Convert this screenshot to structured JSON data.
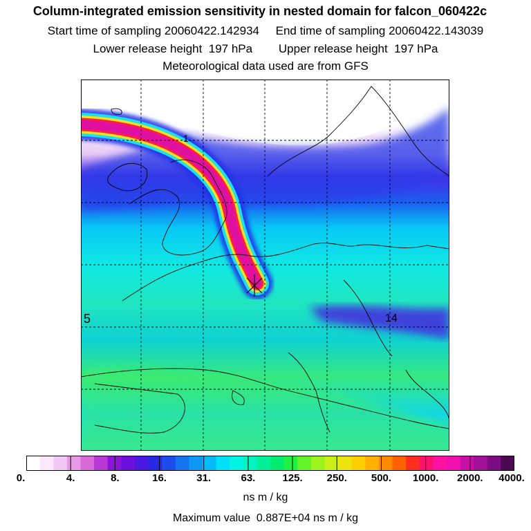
{
  "header": {
    "title": "Column-integrated emission sensitivity in nested domain for falcon_060422c",
    "sampling": "Start time of sampling 20060422.142934     End time of sampling 20060422.143039",
    "heights": "Lower release height  197 hPa        Upper release height  197 hPa",
    "met": "Meteorological data used are from GFS"
  },
  "map": {
    "grid_style": "dashed",
    "marker": "release-point-asterisk",
    "labels": [
      "1",
      "5",
      "14"
    ],
    "colors": {
      "plume_core": "#ff1493",
      "background_high": "#ffffff",
      "coast": "#000000"
    }
  },
  "colorbar": {
    "labels": [
      "0.",
      "4.",
      "8.",
      "16.",
      "31.",
      "63.",
      "125.",
      "250.",
      "500.",
      "1000.",
      "2000.",
      "4000."
    ],
    "colors": [
      "#ffffff",
      "#fce8fc",
      "#f4c8f4",
      "#e89ae8",
      "#d96cd9",
      "#b838d6",
      "#8c14d8",
      "#6a10dc",
      "#4a18e0",
      "#2828e4",
      "#1e4cec",
      "#1474f0",
      "#0c98f4",
      "#06bcf6",
      "#00e0f8",
      "#00f4e6",
      "#00f4c0",
      "#00f09a",
      "#00ec70",
      "#20f040",
      "#60f428",
      "#9cf41c",
      "#c8f014",
      "#ece40c",
      "#ffd000",
      "#ffb000",
      "#ff8c00",
      "#ff6000",
      "#ff2c20",
      "#ff1070",
      "#ff10a0",
      "#f010b0",
      "#c810a8",
      "#a01098",
      "#780c80",
      "#4c0850"
    ],
    "units": "ns m / kg"
  },
  "footer": {
    "max_value": "Maximum value  0.887E+04 ns m / kg"
  }
}
